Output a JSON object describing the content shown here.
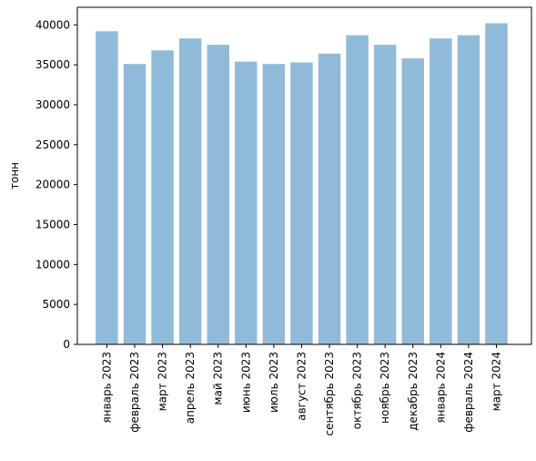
{
  "chart_data": {
    "type": "bar",
    "categories": [
      "январь 2023",
      "февраль 2023",
      "март 2023",
      "апрель 2023",
      "май 2023",
      "июнь 2023",
      "июль 2023",
      "август 2023",
      "сентябрь 2023",
      "октябрь 2023",
      "ноябрь 2023",
      "декабрь 2023",
      "январь 2024",
      "февраль 2024",
      "март 2024"
    ],
    "values": [
      39200,
      35100,
      36800,
      38300,
      37500,
      35400,
      35100,
      35300,
      36400,
      38700,
      37500,
      35800,
      38300,
      38700,
      40200
    ],
    "ylabel": "тонн",
    "xlabel": "",
    "ylim": [
      0,
      42200
    ],
    "yticks": [
      0,
      5000,
      10000,
      15000,
      20000,
      25000,
      30000,
      35000,
      40000
    ],
    "bar_color": "#8fbbd9",
    "grid": false,
    "legend": "none"
  }
}
